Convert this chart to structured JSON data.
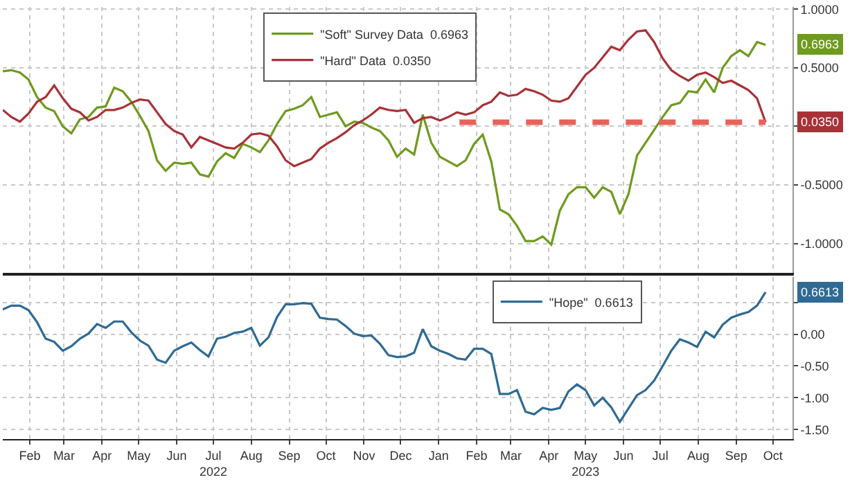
{
  "chart_data": [
    {
      "type": "line",
      "tick_labels": "y",
      "grid": true,
      "legend": "top",
      "xlim": [
        "2022-01-24",
        "2023-10-31"
      ],
      "ylim": [
        -1.25,
        1.02
      ],
      "yticks": [
        {
          "value": 1,
          "label": "1.0000"
        },
        {
          "value": 0.5,
          "label": "0.5000"
        },
        {
          "value": 0,
          "label": null
        },
        {
          "value": -0.5,
          "label": "-0.5000"
        },
        {
          "value": -1,
          "label": "-1.0000"
        }
      ],
      "x": [
        "2022-01-24",
        "2022-01-31",
        "2022-02-07",
        "2022-02-14",
        "2022-02-21",
        "2022-02-28",
        "2022-03-07",
        "2022-03-14",
        "2022-03-21",
        "2022-03-28",
        "2022-04-04",
        "2022-04-11",
        "2022-04-18",
        "2022-04-25",
        "2022-05-02",
        "2022-05-09",
        "2022-05-16",
        "2022-05-23",
        "2022-05-30",
        "2022-06-06",
        "2022-06-13",
        "2022-06-20",
        "2022-06-27",
        "2022-07-04",
        "2022-07-11",
        "2022-07-18",
        "2022-07-25",
        "2022-08-01",
        "2022-08-08",
        "2022-08-15",
        "2022-08-22",
        "2022-08-29",
        "2022-09-05",
        "2022-09-12",
        "2022-09-19",
        "2022-09-26",
        "2022-10-03",
        "2022-10-10",
        "2022-10-17",
        "2022-10-24",
        "2022-10-31",
        "2022-11-07",
        "2022-11-14",
        "2022-11-21",
        "2022-11-28",
        "2022-12-05",
        "2022-12-12",
        "2022-12-19",
        "2022-12-26",
        "2023-01-02",
        "2023-01-09",
        "2023-01-16",
        "2023-01-23",
        "2023-01-30",
        "2023-02-06",
        "2023-02-13",
        "2023-02-20",
        "2023-02-27",
        "2023-03-06",
        "2023-03-13",
        "2023-03-20",
        "2023-03-27",
        "2023-04-03",
        "2023-04-10",
        "2023-04-17",
        "2023-04-24",
        "2023-05-01",
        "2023-05-08",
        "2023-05-15",
        "2023-05-22",
        "2023-05-29",
        "2023-06-05",
        "2023-06-12",
        "2023-06-19",
        "2023-06-26",
        "2023-07-03",
        "2023-07-10",
        "2023-07-17",
        "2023-07-24",
        "2023-07-31",
        "2023-08-07",
        "2023-08-14",
        "2023-08-21",
        "2023-08-28",
        "2023-09-04",
        "2023-09-11",
        "2023-09-18",
        "2023-09-25",
        "2023-10-02",
        "2023-10-09"
      ],
      "series": [
        {
          "name": "\"Soft\" Survey Data  0.6963",
          "color": "#6f9a1e",
          "values": [
            0.47,
            0.48,
            0.46,
            0.4,
            0.25,
            0.16,
            0.13,
            0.0,
            -0.06,
            0.06,
            0.08,
            0.16,
            0.17,
            0.33,
            0.3,
            0.21,
            0.09,
            -0.04,
            -0.29,
            -0.38,
            -0.31,
            -0.32,
            -0.31,
            -0.41,
            -0.43,
            -0.3,
            -0.23,
            -0.27,
            -0.15,
            -0.18,
            -0.22,
            -0.12,
            0.02,
            0.13,
            0.15,
            0.18,
            0.25,
            0.08,
            0.1,
            0.12,
            0.0,
            0.04,
            0.03,
            -0.01,
            -0.04,
            -0.12,
            -0.26,
            -0.19,
            -0.24,
            0.1,
            -0.14,
            -0.26,
            -0.3,
            -0.34,
            -0.29,
            -0.15,
            -0.07,
            -0.3,
            -0.71,
            -0.75,
            -0.85,
            -0.98,
            -0.98,
            -0.94,
            -1.01,
            -0.72,
            -0.58,
            -0.52,
            -0.52,
            -0.61,
            -0.52,
            -0.56,
            -0.75,
            -0.58,
            -0.25,
            -0.14,
            -0.03,
            0.08,
            0.18,
            0.2,
            0.3,
            0.29,
            0.4,
            0.29,
            0.5,
            0.6,
            0.65,
            0.6,
            0.72,
            0.6963
          ]
        },
        {
          "name": "\"Hard\" Data  0.0350",
          "color": "#a83238",
          "values": [
            0.14,
            0.08,
            0.04,
            0.11,
            0.21,
            0.25,
            0.35,
            0.24,
            0.15,
            0.12,
            0.05,
            0.08,
            0.14,
            0.14,
            0.16,
            0.2,
            0.23,
            0.22,
            0.12,
            0.02,
            -0.04,
            -0.07,
            -0.18,
            -0.09,
            -0.12,
            -0.15,
            -0.18,
            -0.19,
            -0.14,
            -0.07,
            -0.06,
            -0.08,
            -0.17,
            -0.29,
            -0.34,
            -0.31,
            -0.28,
            -0.19,
            -0.14,
            -0.1,
            -0.05,
            0.01,
            0.05,
            0.1,
            0.16,
            0.14,
            0.13,
            0.14,
            0.03,
            0.07,
            0.08,
            0.05,
            0.08,
            0.12,
            0.1,
            0.12,
            0.18,
            0.21,
            0.29,
            0.26,
            0.27,
            0.32,
            0.3,
            0.27,
            0.22,
            0.21,
            0.24,
            0.34,
            0.44,
            0.5,
            0.59,
            0.68,
            0.65,
            0.74,
            0.81,
            0.82,
            0.72,
            0.58,
            0.48,
            0.43,
            0.39,
            0.44,
            0.46,
            0.42,
            0.37,
            0.39,
            0.35,
            0.31,
            0.24,
            0.035
          ]
        },
        {
          "type": "line",
          "color": "#e8625a",
          "line_style": "dashed",
          "x": [
            "2023-02-01",
            "2023-10-09"
          ],
          "values": [
            0.035,
            0.035
          ]
        }
      ],
      "annotations": [
        {
          "text": "0.6963",
          "x": "2023-10-09",
          "y": 0.6963
        },
        {
          "text": "0.0350",
          "x": "2023-10-09",
          "y": 0.035
        }
      ]
    },
    {
      "type": "line",
      "grid": true,
      "legend": "top",
      "xlim": [
        "2022-01-24",
        "2023-10-31"
      ],
      "ylim": [
        -1.65,
        0.9
      ],
      "yticks": [
        {
          "value": 0.5,
          "label": null
        },
        {
          "value": 0,
          "label": "0.00"
        },
        {
          "value": -0.5,
          "label": "-0.50"
        },
        {
          "value": -1,
          "label": "-1.00"
        },
        {
          "value": -1.5,
          "label": "-1.50"
        }
      ],
      "xticks": [
        {
          "value": "2022-02-15",
          "label": "Feb"
        },
        {
          "value": "2022-03-15",
          "label": "Mar"
        },
        {
          "value": "2022-04-15",
          "label": "Apr"
        },
        {
          "value": "2022-05-15",
          "label": "May"
        },
        {
          "value": "2022-06-15",
          "label": "Jun"
        },
        {
          "value": "2022-07-15",
          "label": "Jul\n2022"
        },
        {
          "value": "2022-08-15",
          "label": "Aug"
        },
        {
          "value": "2022-09-15",
          "label": "Sep"
        },
        {
          "value": "2022-10-15",
          "label": "Oct"
        },
        {
          "value": "2022-11-15",
          "label": "Nov"
        },
        {
          "value": "2022-12-15",
          "label": "Dec"
        },
        {
          "value": "2023-01-15",
          "label": "Jan"
        },
        {
          "value": "2023-02-15",
          "label": "Feb"
        },
        {
          "value": "2023-03-15",
          "label": "Mar"
        },
        {
          "value": "2023-04-15",
          "label": "Apr"
        },
        {
          "value": "2023-05-15",
          "label": "May\n2023"
        },
        {
          "value": "2023-06-15",
          "label": "Jun"
        },
        {
          "value": "2023-07-15",
          "label": "Jul"
        },
        {
          "value": "2023-08-15",
          "label": "Aug"
        },
        {
          "value": "2023-09-15",
          "label": "Sep"
        },
        {
          "value": "2023-10-15",
          "label": "Oct"
        }
      ],
      "x": [
        "2022-01-24",
        "2022-01-31",
        "2022-02-07",
        "2022-02-14",
        "2022-02-21",
        "2022-02-28",
        "2022-03-07",
        "2022-03-14",
        "2022-03-21",
        "2022-03-28",
        "2022-04-04",
        "2022-04-11",
        "2022-04-18",
        "2022-04-25",
        "2022-05-02",
        "2022-05-09",
        "2022-05-16",
        "2022-05-23",
        "2022-05-30",
        "2022-06-06",
        "2022-06-13",
        "2022-06-20",
        "2022-06-27",
        "2022-07-04",
        "2022-07-11",
        "2022-07-18",
        "2022-07-25",
        "2022-08-01",
        "2022-08-08",
        "2022-08-15",
        "2022-08-22",
        "2022-08-29",
        "2022-09-05",
        "2022-09-12",
        "2022-09-19",
        "2022-09-26",
        "2022-10-03",
        "2022-10-10",
        "2022-10-17",
        "2022-10-24",
        "2022-10-31",
        "2022-11-07",
        "2022-11-14",
        "2022-11-21",
        "2022-11-28",
        "2022-12-05",
        "2022-12-12",
        "2022-12-19",
        "2022-12-26",
        "2023-01-02",
        "2023-01-09",
        "2023-01-16",
        "2023-01-23",
        "2023-01-30",
        "2023-02-06",
        "2023-02-13",
        "2023-02-20",
        "2023-02-27",
        "2023-03-06",
        "2023-03-13",
        "2023-03-20",
        "2023-03-27",
        "2023-04-03",
        "2023-04-10",
        "2023-04-17",
        "2023-04-24",
        "2023-05-01",
        "2023-05-08",
        "2023-05-15",
        "2023-05-22",
        "2023-05-29",
        "2023-06-05",
        "2023-06-12",
        "2023-06-19",
        "2023-06-26",
        "2023-07-03",
        "2023-07-10",
        "2023-07-17",
        "2023-07-24",
        "2023-07-31",
        "2023-08-07",
        "2023-08-14",
        "2023-08-21",
        "2023-08-28",
        "2023-09-04",
        "2023-09-11",
        "2023-09-18",
        "2023-09-25",
        "2023-10-02",
        "2023-10-09"
      ],
      "series": [
        {
          "name": "\"Hope\"  0.6613",
          "color": "#2f6a94",
          "values": [
            0.39,
            0.45,
            0.45,
            0.38,
            0.19,
            -0.07,
            -0.12,
            -0.26,
            -0.19,
            -0.07,
            0.01,
            0.16,
            0.1,
            0.2,
            0.2,
            0.03,
            -0.1,
            -0.18,
            -0.4,
            -0.45,
            -0.26,
            -0.19,
            -0.13,
            -0.25,
            -0.35,
            -0.07,
            -0.04,
            0.02,
            0.04,
            0.1,
            -0.18,
            -0.05,
            0.27,
            0.47,
            0.47,
            0.49,
            0.48,
            0.26,
            0.24,
            0.23,
            0.13,
            0.01,
            -0.03,
            -0.02,
            -0.15,
            -0.33,
            -0.36,
            -0.35,
            -0.29,
            0.08,
            -0.19,
            -0.26,
            -0.31,
            -0.38,
            -0.4,
            -0.23,
            -0.23,
            -0.31,
            -0.94,
            -0.94,
            -0.88,
            -1.22,
            -1.26,
            -1.16,
            -1.19,
            -1.16,
            -0.9,
            -0.79,
            -0.88,
            -1.12,
            -1.0,
            -1.15,
            -1.38,
            -1.17,
            -0.96,
            -0.88,
            -0.73,
            -0.5,
            -0.26,
            -0.08,
            -0.13,
            -0.2,
            0.04,
            -0.05,
            0.15,
            0.26,
            0.31,
            0.35,
            0.45,
            0.6613
          ]
        }
      ],
      "annotations": [
        {
          "text": "0.6613",
          "x": "2023-10-09",
          "y": 0.6613
        }
      ]
    }
  ]
}
